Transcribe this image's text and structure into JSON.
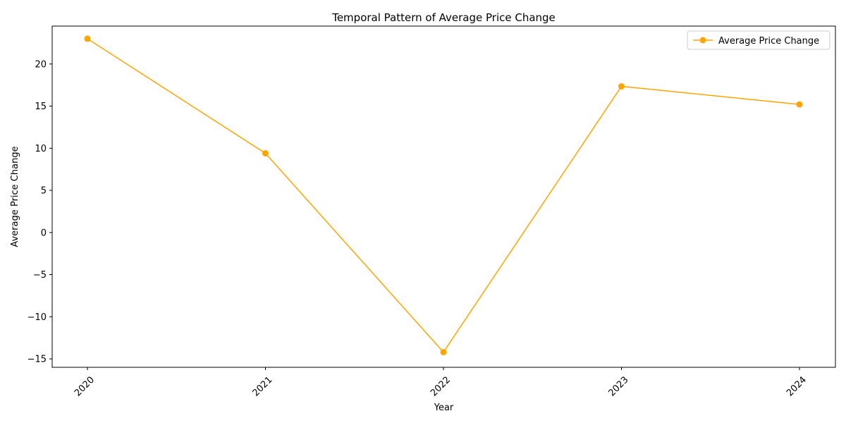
{
  "chart_data": {
    "type": "line",
    "title": "Temporal Pattern of Average Price Change",
    "xlabel": "Year",
    "ylabel": "Average Price Change",
    "x": [
      "2020",
      "2021",
      "2022",
      "2023",
      "2024"
    ],
    "series": [
      {
        "name": "Average Price Change",
        "values": [
          23.0,
          9.4,
          -14.2,
          17.35,
          15.2
        ],
        "color": "#FFA500"
      }
    ],
    "ylim": [
      -16,
      24.5
    ],
    "yticks": [
      -15,
      -10,
      -5,
      0,
      5,
      10,
      15,
      20
    ],
    "yticklabels": [
      "−15",
      "−10",
      "−5",
      "0",
      "5",
      "10",
      "15",
      "20"
    ],
    "xticks_rotation_deg": 45,
    "grid": false,
    "legend_position": "top-right"
  }
}
